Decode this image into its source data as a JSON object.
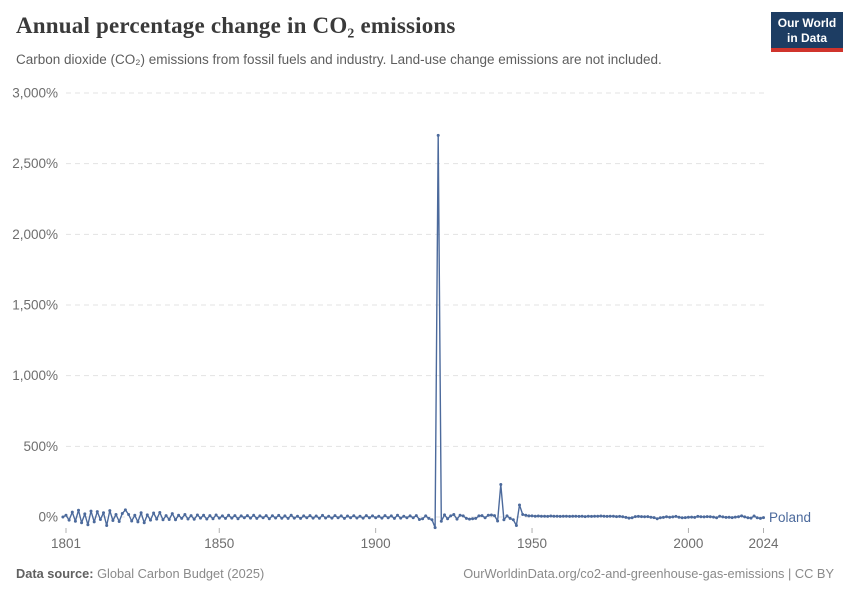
{
  "header": {
    "title": "Annual percentage change in CO₂ emissions",
    "subtitle": "Carbon dioxide (CO₂) emissions from fossil fuels and industry. Land-use change emissions are not included.",
    "logo": {
      "line1": "Our World",
      "line2": "in Data",
      "bg_color": "#1d3d63",
      "accent_color": "#d0342c"
    }
  },
  "chart_data": {
    "type": "line",
    "title": "Annual percentage change in CO₂ emissions",
    "xlabel": "",
    "ylabel": "",
    "unit": "%",
    "grid": "dashed",
    "grid_color": "#e3e3e3",
    "axis_text_color": "#6e6e6e",
    "tick_mark_color": "#b0b0b0",
    "legend_position": "end-of-line",
    "x_start": 1800,
    "x_end": 2024,
    "x_ticks": [
      1801,
      1850,
      1900,
      1950,
      2000,
      2024
    ],
    "y_ticks": [
      0,
      500,
      1000,
      1500,
      2000,
      2500,
      3000
    ],
    "y_tick_labels": [
      "0%",
      "500%",
      "1,000%",
      "1,500%",
      "2,000%",
      "2,500%",
      "3,000%"
    ],
    "ylim": [
      -100,
      3000
    ],
    "notable_points": [
      {
        "year": 1920,
        "value": 2700
      },
      {
        "year": 1919,
        "value": -75
      },
      {
        "year": 1940,
        "value": 230
      },
      {
        "year": 1945,
        "value": -60
      },
      {
        "year": 1946,
        "value": 85
      }
    ],
    "series": [
      {
        "name": "Poland",
        "color": "#4C6A9C",
        "values": [
          0,
          12,
          -22,
          35,
          -30,
          48,
          -40,
          22,
          -55,
          42,
          -35,
          38,
          -18,
          30,
          -60,
          45,
          -25,
          18,
          -32,
          25,
          50,
          18,
          -28,
          12,
          -35,
          30,
          -40,
          15,
          -22,
          28,
          -15,
          32,
          -20,
          10,
          -18,
          24,
          -20,
          12,
          -10,
          18,
          -14,
          10,
          -16,
          14,
          -8,
          12,
          -14,
          10,
          -12,
          14,
          -8,
          8,
          -10,
          12,
          -8,
          10,
          -12,
          8,
          -6,
          10,
          -8,
          12,
          -10,
          8,
          -6,
          10,
          -12,
          9,
          -7,
          11,
          -9,
          8,
          -10,
          12,
          -8,
          6,
          -10,
          8,
          -6,
          10,
          -8,
          7,
          -9,
          11,
          -7,
          6,
          -8,
          10,
          -6,
          8,
          -10,
          7,
          -5,
          9,
          -7,
          6,
          -8,
          10,
          -6,
          8,
          -5,
          6,
          -8,
          10,
          -6,
          8,
          -10,
          12,
          -8,
          6,
          -5,
          8,
          -6,
          10,
          -18,
          -12,
          8,
          -10,
          -20,
          -75,
          2700,
          -30,
          15,
          -12,
          8,
          18,
          -15,
          12,
          8,
          -10,
          -15,
          -12,
          -10,
          8,
          10,
          -6,
          12,
          14,
          10,
          -28,
          230,
          -20,
          8,
          -10,
          -20,
          -60,
          85,
          18,
          12,
          8,
          8,
          6,
          7,
          5,
          6,
          4,
          7,
          5,
          6,
          4,
          5,
          6,
          4,
          5,
          6,
          4,
          5,
          3,
          6,
          4,
          5,
          6,
          7,
          5,
          4,
          6,
          5,
          3,
          4,
          2,
          -3,
          -8,
          -5,
          3,
          4,
          3,
          2,
          3,
          -2,
          -4,
          -12,
          -5,
          -3,
          2,
          -2,
          1,
          4,
          -2,
          -6,
          -4,
          -2,
          -1,
          -3,
          4,
          2,
          1,
          3,
          2,
          -1,
          -5,
          5,
          1,
          -3,
          -2,
          -4,
          -1,
          2,
          8,
          1,
          -5,
          -8,
          7,
          -6,
          -10,
          -4
        ]
      }
    ]
  },
  "footer": {
    "sources_label": "Data source:",
    "source": "Global Carbon Budget (2025)",
    "link_text": "OurWorldinData.org/co2-and-greenhouse-gas-emissions | CC BY"
  }
}
